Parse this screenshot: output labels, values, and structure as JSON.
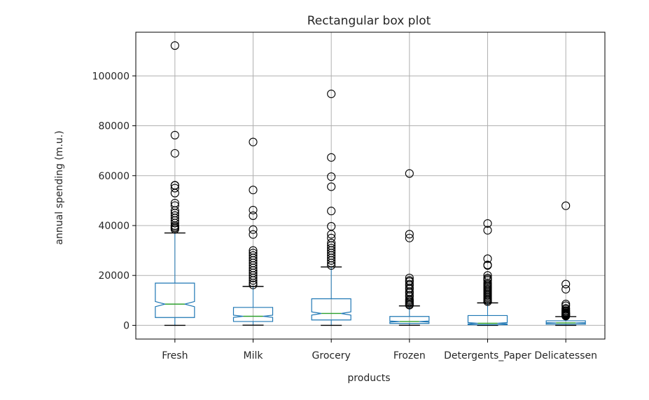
{
  "chart_data": {
    "type": "box",
    "title": "Rectangular box plot",
    "xlabel": "products",
    "ylabel": "annual spending (m.u.)",
    "ylim": [
      -5500,
      117500
    ],
    "yticks": [
      0,
      20000,
      40000,
      60000,
      80000,
      100000
    ],
    "grid": true,
    "notched": true,
    "categories": [
      "Fresh",
      "Milk",
      "Grocery",
      "Frozen",
      "Detergents_Paper",
      "Delicatessen"
    ],
    "boxes": [
      {
        "label": "Fresh",
        "whisker_low": 3,
        "q1": 3128,
        "median": 8504,
        "q3": 16934,
        "whisker_high": 37036,
        "notch": [
          7468,
          9540
        ],
        "fliers": [
          112151,
          76237,
          68951,
          56159,
          56083,
          55000,
          53000,
          49000,
          48000,
          46000,
          45000,
          44000,
          43000,
          42000,
          41000,
          40000,
          39500,
          39000,
          38500
        ]
      },
      {
        "label": "Milk",
        "whisker_low": 55,
        "q1": 1533,
        "median": 3627,
        "q3": 7190,
        "whisker_high": 15600,
        "notch": [
          3200,
          4050
        ],
        "fliers": [
          73498,
          54259,
          46197,
          43950,
          38369,
          36423,
          30000,
          29000,
          28000,
          27000,
          26000,
          25000,
          24000,
          23000,
          22000,
          21000,
          20000,
          19000,
          18000,
          17000,
          16200
        ]
      },
      {
        "label": "Grocery",
        "whisker_low": 3,
        "q1": 2153,
        "median": 4756,
        "q3": 10656,
        "whisker_high": 23400,
        "notch": [
          4120,
          5390
        ],
        "fliers": [
          92780,
          67298,
          59598,
          55571,
          45828,
          39694,
          36486,
          35000,
          33000,
          32000,
          31000,
          30000,
          29000,
          28000,
          27000,
          26000,
          25000,
          24000
        ]
      },
      {
        "label": "Frozen",
        "whisker_low": 25,
        "q1": 742,
        "median": 1526,
        "q3": 3554,
        "whisker_high": 7800,
        "notch": [
          1310,
          1740
        ],
        "fliers": [
          60869,
          36534,
          35009,
          19000,
          18000,
          17500,
          16500,
          16000,
          15000,
          14500,
          13500,
          13000,
          12000,
          11500,
          10500,
          10000,
          9500,
          9000,
          8500,
          8100
        ]
      },
      {
        "label": "Detergents_Paper",
        "whisker_low": 3,
        "q1": 257,
        "median": 816,
        "q3": 3922,
        "whisker_high": 9000,
        "notch": [
          540,
          1090
        ],
        "fliers": [
          40827,
          38102,
          26701,
          24231,
          24000,
          20000,
          19000,
          18500,
          18000,
          17000,
          16500,
          16000,
          15500,
          15000,
          14500,
          14000,
          13500,
          13000,
          12500,
          12000,
          11500,
          11000,
          10500,
          10000,
          9500
        ]
      },
      {
        "label": "Delicatessen",
        "whisker_low": 3,
        "q1": 408,
        "median": 966,
        "q3": 1820,
        "whisker_high": 3500,
        "notch": [
          860,
          1070
        ],
        "fliers": [
          47943,
          16523,
          14472,
          8550,
          7844,
          6854,
          6372,
          5864,
          5500,
          5137,
          4900,
          4700,
          4500,
          4300,
          4100,
          3900,
          3700
        ]
      }
    ],
    "colors": {
      "box": "#1f77b4",
      "median": "#2ca02c",
      "whisker": "#000000",
      "flier_edge": "#000000",
      "grid": "#b0b0b0",
      "axes": "#000000"
    }
  }
}
